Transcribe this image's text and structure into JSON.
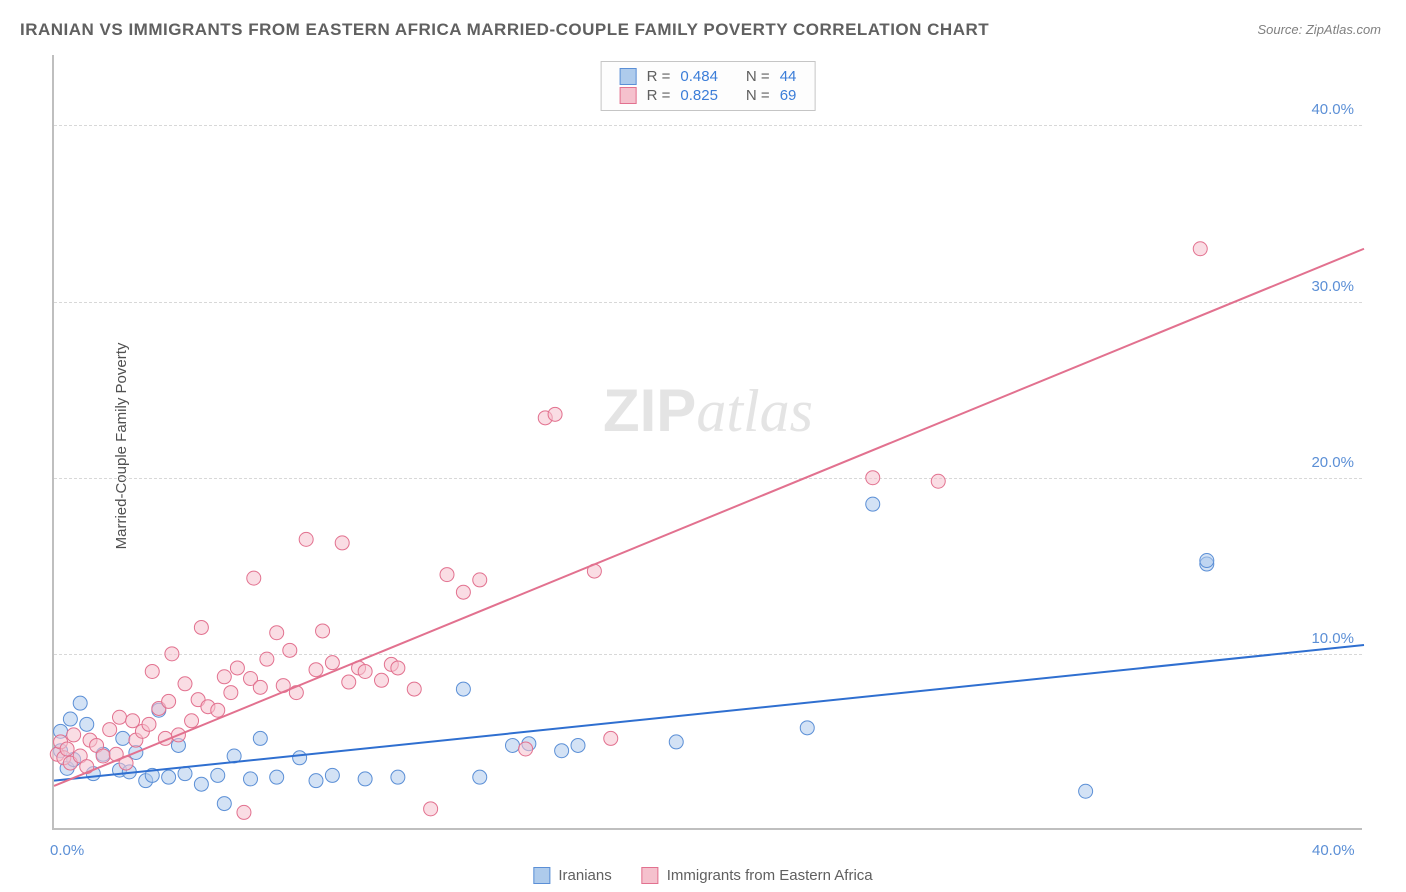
{
  "title": "IRANIAN VS IMMIGRANTS FROM EASTERN AFRICA MARRIED-COUPLE FAMILY POVERTY CORRELATION CHART",
  "source": "Source: ZipAtlas.com",
  "y_axis_label": "Married-Couple Family Poverty",
  "watermark_zip": "ZIP",
  "watermark_atlas": "atlas",
  "chart": {
    "type": "scatter",
    "xlim": [
      0,
      40
    ],
    "ylim": [
      0,
      44
    ],
    "x_ticks": [
      {
        "v": 0,
        "label": "0.0%"
      },
      {
        "v": 40,
        "label": "40.0%"
      }
    ],
    "y_ticks": [
      {
        "v": 10,
        "label": "10.0%"
      },
      {
        "v": 20,
        "label": "20.0%"
      },
      {
        "v": 30,
        "label": "30.0%"
      },
      {
        "v": 40,
        "label": "40.0%"
      }
    ],
    "grid_values": [
      10,
      20,
      30,
      40
    ],
    "background_color": "#ffffff",
    "grid_color": "#d8d8d8",
    "series": [
      {
        "name": "Iranians",
        "label": "Iranians",
        "fill": "#aecbec",
        "stroke": "#5b8fd6",
        "line_color": "#2f6fd0",
        "r_label": "R =",
        "n_label": "N =",
        "r": "0.484",
        "n": "44",
        "marker_radius": 7,
        "marker_opacity": 0.55,
        "line_width": 2,
        "trend": {
          "x1": 0,
          "y1": 2.8,
          "x2": 40,
          "y2": 10.5
        },
        "points": [
          [
            0.2,
            4.5
          ],
          [
            0.2,
            5.6
          ],
          [
            0.4,
            3.5
          ],
          [
            0.5,
            6.3
          ],
          [
            0.6,
            4.0
          ],
          [
            0.8,
            7.2
          ],
          [
            1.0,
            6.0
          ],
          [
            1.2,
            3.2
          ],
          [
            1.5,
            4.3
          ],
          [
            2.0,
            3.4
          ],
          [
            2.1,
            5.2
          ],
          [
            2.3,
            3.3
          ],
          [
            2.5,
            4.4
          ],
          [
            2.8,
            2.8
          ],
          [
            3.0,
            3.1
          ],
          [
            3.2,
            6.8
          ],
          [
            3.5,
            3.0
          ],
          [
            3.8,
            4.8
          ],
          [
            4.0,
            3.2
          ],
          [
            4.5,
            2.6
          ],
          [
            5.0,
            3.1
          ],
          [
            5.2,
            1.5
          ],
          [
            5.5,
            4.2
          ],
          [
            6.0,
            2.9
          ],
          [
            6.3,
            5.2
          ],
          [
            6.8,
            3.0
          ],
          [
            7.5,
            4.1
          ],
          [
            8.0,
            2.8
          ],
          [
            8.5,
            3.1
          ],
          [
            9.5,
            2.9
          ],
          [
            10.5,
            3.0
          ],
          [
            12.5,
            8.0
          ],
          [
            13.0,
            3.0
          ],
          [
            14.0,
            4.8
          ],
          [
            14.5,
            4.9
          ],
          [
            15.5,
            4.5
          ],
          [
            16.0,
            4.8
          ],
          [
            19.0,
            5.0
          ],
          [
            23.0,
            5.8
          ],
          [
            25.0,
            18.5
          ],
          [
            31.5,
            2.2
          ],
          [
            35.2,
            15.1
          ],
          [
            35.2,
            15.3
          ]
        ]
      },
      {
        "name": "Immigrants from Eastern Africa",
        "label": "Immigrants from Eastern Africa",
        "fill": "#f5c1cd",
        "stroke": "#e2718f",
        "line_color": "#e2718f",
        "r_label": "R =",
        "n_label": "N =",
        "r": "0.825",
        "n": "69",
        "marker_radius": 7,
        "marker_opacity": 0.55,
        "line_width": 2,
        "trend": {
          "x1": 0,
          "y1": 2.5,
          "x2": 40,
          "y2": 33.0
        },
        "points": [
          [
            0.1,
            4.3
          ],
          [
            0.2,
            5.0
          ],
          [
            0.3,
            4.1
          ],
          [
            0.4,
            4.6
          ],
          [
            0.5,
            3.8
          ],
          [
            0.6,
            5.4
          ],
          [
            0.8,
            4.2
          ],
          [
            1.0,
            3.6
          ],
          [
            1.1,
            5.1
          ],
          [
            1.3,
            4.8
          ],
          [
            1.5,
            4.2
          ],
          [
            1.7,
            5.7
          ],
          [
            1.9,
            4.3
          ],
          [
            2.0,
            6.4
          ],
          [
            2.2,
            3.8
          ],
          [
            2.4,
            6.2
          ],
          [
            2.5,
            5.1
          ],
          [
            2.7,
            5.6
          ],
          [
            2.9,
            6.0
          ],
          [
            3.0,
            9.0
          ],
          [
            3.2,
            6.9
          ],
          [
            3.4,
            5.2
          ],
          [
            3.5,
            7.3
          ],
          [
            3.6,
            10.0
          ],
          [
            3.8,
            5.4
          ],
          [
            4.0,
            8.3
          ],
          [
            4.2,
            6.2
          ],
          [
            4.4,
            7.4
          ],
          [
            4.5,
            11.5
          ],
          [
            4.7,
            7.0
          ],
          [
            5.0,
            6.8
          ],
          [
            5.2,
            8.7
          ],
          [
            5.4,
            7.8
          ],
          [
            5.6,
            9.2
          ],
          [
            5.8,
            1.0
          ],
          [
            6.0,
            8.6
          ],
          [
            6.1,
            14.3
          ],
          [
            6.3,
            8.1
          ],
          [
            6.5,
            9.7
          ],
          [
            6.8,
            11.2
          ],
          [
            7.0,
            8.2
          ],
          [
            7.2,
            10.2
          ],
          [
            7.4,
            7.8
          ],
          [
            7.7,
            16.5
          ],
          [
            8.0,
            9.1
          ],
          [
            8.2,
            11.3
          ],
          [
            8.5,
            9.5
          ],
          [
            8.8,
            16.3
          ],
          [
            9.0,
            8.4
          ],
          [
            9.3,
            9.2
          ],
          [
            9.5,
            9.0
          ],
          [
            10.0,
            8.5
          ],
          [
            10.3,
            9.4
          ],
          [
            10.5,
            9.2
          ],
          [
            11.0,
            8.0
          ],
          [
            11.5,
            1.2
          ],
          [
            12.0,
            14.5
          ],
          [
            12.5,
            13.5
          ],
          [
            13.0,
            14.2
          ],
          [
            14.4,
            4.6
          ],
          [
            15.0,
            23.4
          ],
          [
            15.3,
            23.6
          ],
          [
            16.5,
            14.7
          ],
          [
            17.0,
            5.2
          ],
          [
            25.0,
            20.0
          ],
          [
            27.0,
            19.8
          ],
          [
            35.0,
            33.0
          ]
        ]
      }
    ]
  },
  "legend_bottom": {
    "s1": "Iranians",
    "s2": "Immigrants from Eastern Africa"
  }
}
